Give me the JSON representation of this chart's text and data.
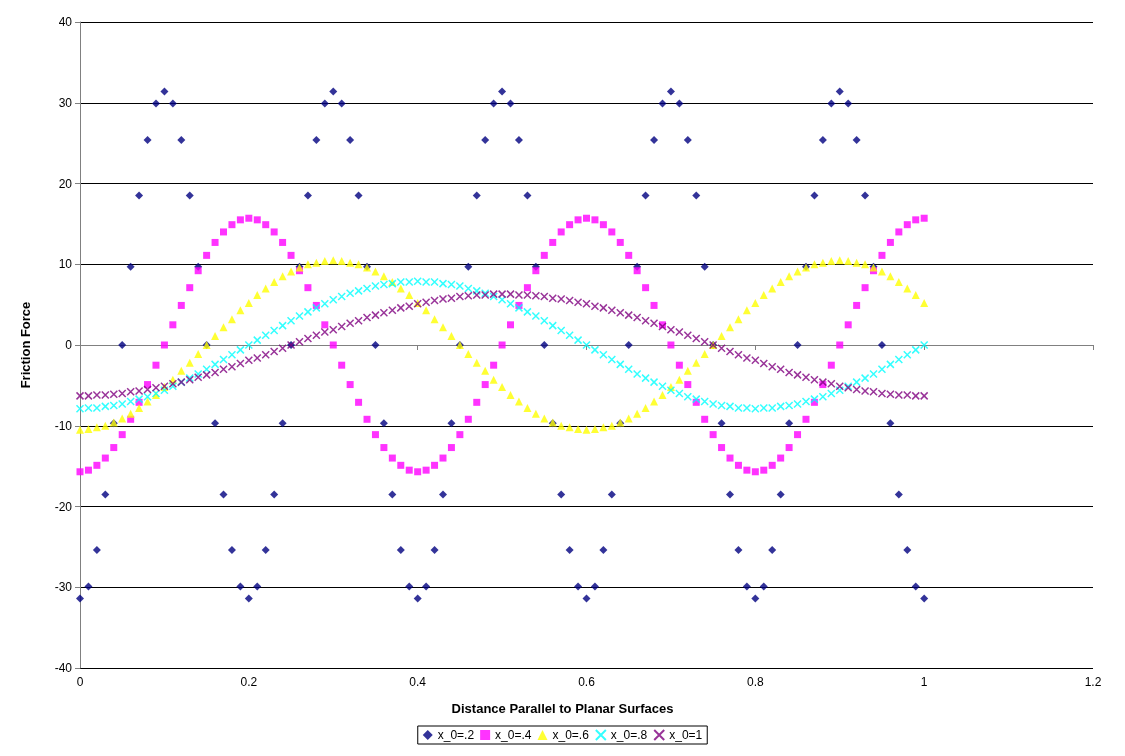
{
  "chart_data": {
    "type": "scatter",
    "xlabel": "Distance Parallel to Planar Surfaces",
    "ylabel": "Friction Force",
    "x": [
      0,
      0.01,
      0.02,
      0.03,
      0.04,
      0.05,
      0.06,
      0.07,
      0.08,
      0.09,
      0.1,
      0.11,
      0.12,
      0.13,
      0.14,
      0.15,
      0.16,
      0.17,
      0.18,
      0.19,
      0.2,
      0.21,
      0.22,
      0.23,
      0.24,
      0.25,
      0.26,
      0.27,
      0.28,
      0.29,
      0.3,
      0.31,
      0.32,
      0.33,
      0.34,
      0.35,
      0.36,
      0.37,
      0.38,
      0.39,
      0.4,
      0.41,
      0.42,
      0.43,
      0.44,
      0.45,
      0.46,
      0.47,
      0.48,
      0.49,
      0.5,
      0.51,
      0.52,
      0.53,
      0.54,
      0.55,
      0.56,
      0.57,
      0.58,
      0.59,
      0.6,
      0.61,
      0.62,
      0.63,
      0.64,
      0.65,
      0.66,
      0.67,
      0.68,
      0.69,
      0.7,
      0.71,
      0.72,
      0.73,
      0.74,
      0.75,
      0.76,
      0.77,
      0.78,
      0.79,
      0.8,
      0.81,
      0.82,
      0.83,
      0.84,
      0.85,
      0.86,
      0.87,
      0.88,
      0.89,
      0.9,
      0.91,
      0.92,
      0.93,
      0.94,
      0.95,
      0.96,
      0.97,
      0.98,
      0.99,
      1
    ],
    "series": [
      {
        "name": "x_0=.2",
        "color": "#000080",
        "marker": "diamond",
        "values": [
          -31.4,
          -29.9,
          -25.4,
          -18.5,
          -9.7,
          0,
          9.7,
          18.5,
          25.4,
          29.9,
          31.4,
          29.9,
          25.4,
          18.5,
          9.7,
          0,
          -9.7,
          -18.5,
          -25.4,
          -29.9,
          -31.4,
          -29.9,
          -25.4,
          -18.5,
          -9.7,
          0,
          9.7,
          18.5,
          25.4,
          29.9,
          31.4,
          29.9,
          25.4,
          18.5,
          9.7,
          0,
          -9.7,
          -18.5,
          -25.4,
          -29.9,
          -31.4,
          -29.9,
          -25.4,
          -18.5,
          -9.7,
          0,
          9.7,
          18.5,
          25.4,
          29.9,
          31.4,
          29.9,
          25.4,
          18.5,
          9.7,
          0,
          -9.7,
          -18.5,
          -25.4,
          -29.9,
          -31.4,
          -29.9,
          -25.4,
          -18.5,
          -9.7,
          0,
          9.7,
          18.5,
          25.4,
          29.9,
          31.4,
          29.9,
          25.4,
          18.5,
          9.7,
          0,
          -9.7,
          -18.5,
          -25.4,
          -29.9,
          -31.4,
          -29.9,
          -25.4,
          -18.5,
          -9.7,
          0,
          9.7,
          18.5,
          25.4,
          29.9,
          31.4,
          29.9,
          25.4,
          18.5,
          9.7,
          0,
          -9.7,
          -18.5,
          -25.4,
          -29.9,
          -31.4
        ]
      },
      {
        "name": "x_0=.4",
        "color": "#ff00ff",
        "marker": "square",
        "values": [
          -15.7,
          -15.5,
          -14.9,
          -14,
          -12.7,
          -11.1,
          -9.2,
          -7.1,
          -4.9,
          -2.5,
          0,
          2.5,
          4.9,
          7.1,
          9.2,
          11.1,
          12.7,
          14,
          14.9,
          15.5,
          15.7,
          15.5,
          14.9,
          14,
          12.7,
          11.1,
          9.2,
          7.1,
          4.9,
          2.5,
          0,
          -2.5,
          -4.9,
          -7.1,
          -9.2,
          -11.1,
          -12.7,
          -14,
          -14.9,
          -15.5,
          -15.7,
          -15.5,
          -14.9,
          -14,
          -12.7,
          -11.1,
          -9.2,
          -7.1,
          -4.9,
          -2.5,
          0,
          2.5,
          4.9,
          7.1,
          9.2,
          11.1,
          12.7,
          14,
          14.9,
          15.5,
          15.7,
          15.5,
          14.9,
          14,
          12.7,
          11.1,
          9.2,
          7.1,
          4.9,
          2.5,
          0,
          -2.5,
          -4.9,
          -7.1,
          -9.2,
          -11.1,
          -12.7,
          -14,
          -14.9,
          -15.5,
          -15.7,
          -15.5,
          -14.9,
          -14,
          -12.7,
          -11.1,
          -9.2,
          -7.1,
          -4.9,
          -2.5,
          0,
          2.5,
          4.9,
          7.1,
          9.2,
          11.1,
          12.7,
          14,
          14.9,
          15.5,
          15.7
        ]
      },
      {
        "name": "x_0=.6",
        "color": "#ffff00",
        "marker": "triangle",
        "values": [
          -10.5,
          -10.4,
          -10.2,
          -10,
          -9.6,
          -9.1,
          -8.5,
          -7.8,
          -7,
          -6.2,
          -5.2,
          -4.3,
          -3.2,
          -2.2,
          -1.1,
          0,
          1.1,
          2.2,
          3.2,
          4.3,
          5.2,
          6.2,
          7,
          7.8,
          8.5,
          9.1,
          9.6,
          10,
          10.2,
          10.4,
          10.5,
          10.4,
          10.2,
          10,
          9.6,
          9.1,
          8.5,
          7.8,
          7,
          6.2,
          5.2,
          4.3,
          3.2,
          2.2,
          1.1,
          0,
          -1.1,
          -2.2,
          -3.2,
          -4.3,
          -5.2,
          -6.2,
          -7,
          -7.8,
          -8.5,
          -9.1,
          -9.6,
          -10,
          -10.2,
          -10.4,
          -10.5,
          -10.4,
          -10.2,
          -10,
          -9.6,
          -9.1,
          -8.5,
          -7.8,
          -7,
          -6.2,
          -5.2,
          -4.3,
          -3.2,
          -2.2,
          -1.1,
          0,
          1.1,
          2.2,
          3.2,
          4.3,
          5.2,
          6.2,
          7,
          7.8,
          8.5,
          9.1,
          9.6,
          10,
          10.2,
          10.4,
          10.5,
          10.4,
          10.2,
          10,
          9.6,
          9.1,
          8.5,
          7.8,
          7,
          6.2,
          5.2
        ]
      },
      {
        "name": "x_0=.8",
        "color": "#00ffff",
        "marker": "cross",
        "values": [
          -7.9,
          -7.8,
          -7.8,
          -7.6,
          -7.5,
          -7.3,
          -7,
          -6.7,
          -6.4,
          -6,
          -5.6,
          -5.1,
          -4.6,
          -4.1,
          -3.6,
          -3,
          -2.4,
          -1.8,
          -1.2,
          -0.6,
          0,
          0.6,
          1.2,
          1.8,
          2.4,
          3,
          3.6,
          4.1,
          4.6,
          5.1,
          5.6,
          6,
          6.4,
          6.7,
          7,
          7.3,
          7.5,
          7.6,
          7.8,
          7.8,
          7.9,
          7.8,
          7.8,
          7.6,
          7.5,
          7.3,
          7,
          6.7,
          6.4,
          6,
          5.6,
          5.1,
          4.6,
          4.1,
          3.6,
          3,
          2.4,
          1.8,
          1.2,
          0.6,
          0,
          -0.6,
          -1.2,
          -1.8,
          -2.4,
          -3,
          -3.6,
          -4.1,
          -4.6,
          -5.1,
          -5.6,
          -6,
          -6.4,
          -6.7,
          -7,
          -7.3,
          -7.5,
          -7.6,
          -7.8,
          -7.8,
          -7.9,
          -7.8,
          -7.8,
          -7.6,
          -7.5,
          -7.3,
          -7,
          -6.7,
          -6.4,
          -6,
          -5.6,
          -5.1,
          -4.6,
          -4.1,
          -3.6,
          -3,
          -2.4,
          -1.8,
          -1.2,
          -0.6,
          0
        ]
      },
      {
        "name": "x_0=1",
        "color": "#800080",
        "marker": "cross",
        "values": [
          -6.3,
          -6.3,
          -6.2,
          -6.2,
          -6.1,
          -6,
          -5.8,
          -5.7,
          -5.5,
          -5.3,
          -5.1,
          -4.8,
          -4.6,
          -4.3,
          -4,
          -3.7,
          -3.4,
          -3,
          -2.7,
          -2.3,
          -1.9,
          -1.6,
          -1.2,
          -0.8,
          -0.4,
          0,
          0.4,
          0.8,
          1.2,
          1.6,
          1.9,
          2.3,
          2.7,
          3,
          3.4,
          3.7,
          4,
          4.3,
          4.6,
          4.8,
          5.1,
          5.3,
          5.5,
          5.7,
          5.8,
          6,
          6.1,
          6.2,
          6.2,
          6.3,
          6.3,
          6.3,
          6.2,
          6.2,
          6.1,
          6,
          5.8,
          5.7,
          5.5,
          5.3,
          5.1,
          4.8,
          4.6,
          4.3,
          4,
          3.7,
          3.4,
          3,
          2.7,
          2.3,
          1.9,
          1.6,
          1.2,
          0.8,
          0.4,
          0,
          -0.4,
          -0.8,
          -1.2,
          -1.6,
          -1.9,
          -2.3,
          -2.7,
          -3,
          -3.4,
          -3.7,
          -4,
          -4.3,
          -4.6,
          -4.8,
          -5.1,
          -5.3,
          -5.5,
          -5.7,
          -5.8,
          -6,
          -6.1,
          -6.2,
          -6.2,
          -6.3,
          -6.3
        ]
      }
    ],
    "xlim": [
      0,
      1.2
    ],
    "xticks": [
      0,
      0.2,
      0.4,
      0.6,
      0.8,
      1,
      1.2
    ],
    "ylim": [
      -40,
      40
    ],
    "yticks": [
      -40,
      -30,
      -20,
      -10,
      0,
      10,
      20,
      30,
      40
    ],
    "grid": "y",
    "legend": "bottom"
  }
}
